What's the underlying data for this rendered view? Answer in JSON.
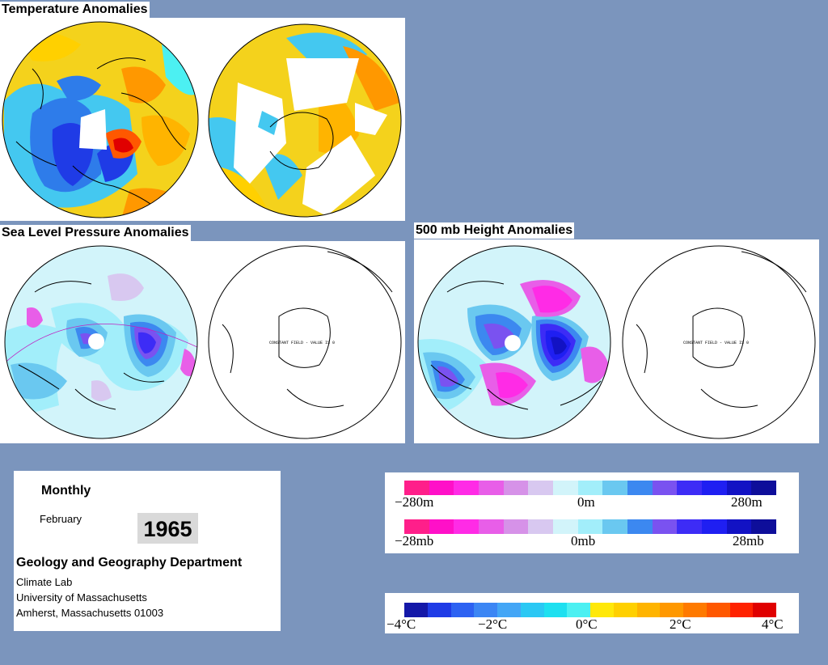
{
  "titles": {
    "temperature": "Temperature Anomalies",
    "slp": "Sea Level Pressure Anomalies",
    "height500": "500 mb Height Anomalies"
  },
  "maps": {
    "constant_field": "CONSTANT FIELD - VALUE IS 0"
  },
  "info": {
    "period": "Monthly",
    "month": "February",
    "year": "1965",
    "dept": "Geology and Geography Department",
    "lab": "Climate Lab",
    "university": "University of Massachusetts",
    "address": "Amherst, Massachusetts 01003"
  },
  "legend_pressure": {
    "height_labels": [
      "−280m",
      "0m",
      "280m"
    ],
    "mb_labels": [
      "−28mb",
      "0mb",
      "28mb"
    ],
    "colors": [
      "#ff1f8a",
      "#ff10c8",
      "#ff2be6",
      "#e85ee8",
      "#d692e8",
      "#d8c8f0",
      "#d2f4fa",
      "#a2eefa",
      "#6ac8f0",
      "#3c88f0",
      "#7a52f0",
      "#3d2cf6",
      "#1f1ff2",
      "#1212c4",
      "#0e0e9a"
    ]
  },
  "legend_temperature": {
    "labels": [
      "−4°C",
      "−2°C",
      "0°C",
      "2°C",
      "4°C"
    ],
    "colors": [
      "#1418a8",
      "#1f3be6",
      "#2d62f2",
      "#3c86f4",
      "#44a6f6",
      "#2bc8f4",
      "#1ee0f0",
      "#4cf0f2",
      "#ffe80a",
      "#ffd000",
      "#ffb400",
      "#ff9800",
      "#ff7a00",
      "#ff5800",
      "#ff2200",
      "#e00000"
    ]
  }
}
